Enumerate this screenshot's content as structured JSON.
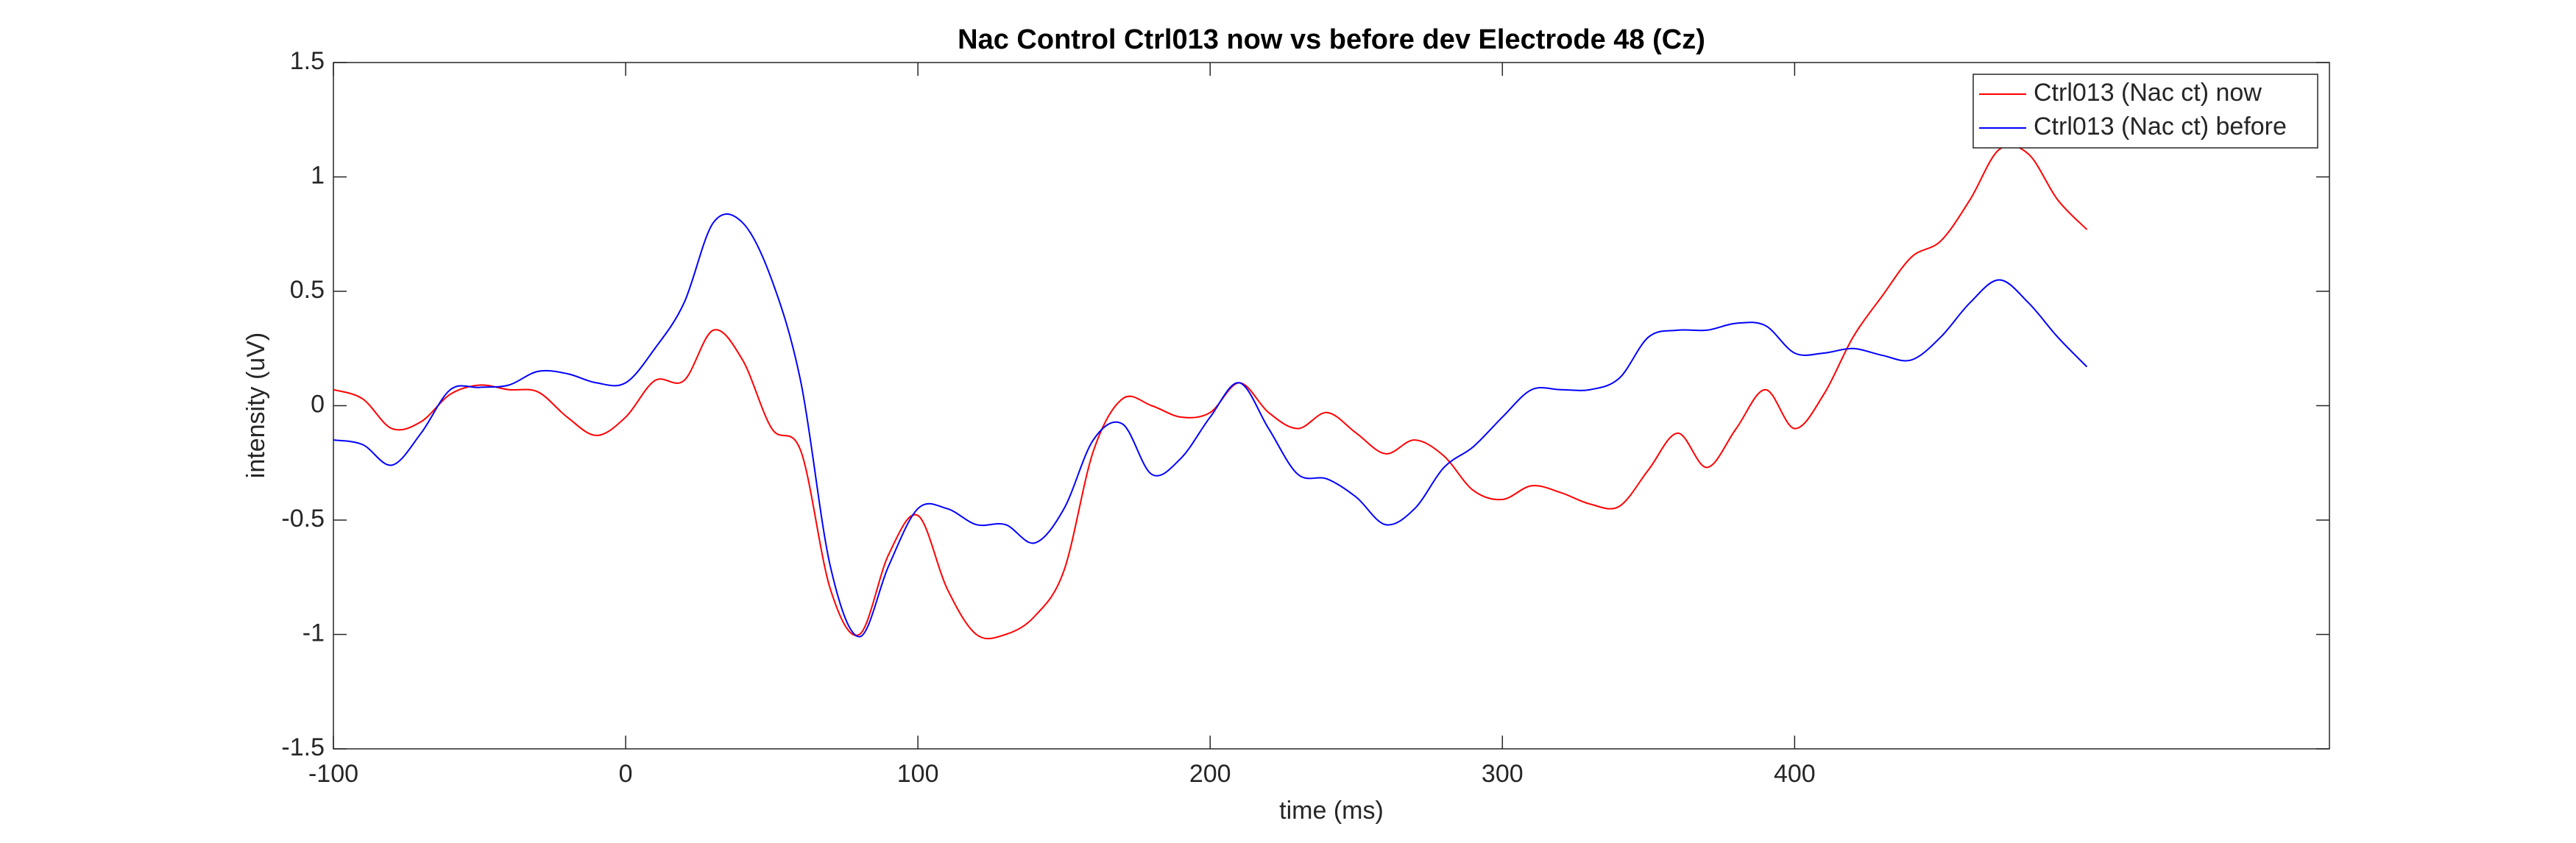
{
  "chart_data": {
    "type": "line",
    "title": "Nac Control Ctrl013 now vs before dev Electrode 48 (Cz)",
    "xlabel": "time (ms)",
    "ylabel": "intensity (uV)",
    "x": [
      -100,
      -90,
      -80,
      -70,
      -60,
      -50,
      -40,
      -30,
      -20,
      -10,
      0,
      10,
      20,
      30,
      40,
      50,
      60,
      70,
      80,
      90,
      100,
      110,
      120,
      130,
      140,
      150,
      160,
      170,
      180,
      190,
      200,
      210,
      220,
      230,
      240,
      250,
      260,
      270,
      280,
      290,
      300,
      310,
      320,
      330,
      340,
      350,
      360,
      370,
      380,
      390,
      400,
      410,
      420,
      430,
      440,
      450,
      460,
      470,
      480,
      490,
      500
    ],
    "series": [
      {
        "name": "Ctrl013 (Nac ct) now",
        "color": "#ff0000",
        "values": [
          0.07,
          0.03,
          -0.1,
          -0.07,
          0.05,
          0.09,
          0.07,
          0.06,
          -0.05,
          -0.13,
          -0.05,
          0.11,
          0.11,
          0.33,
          0.2,
          -0.1,
          -0.2,
          -0.8,
          -1.0,
          -0.65,
          -0.48,
          -0.8,
          -1.0,
          -1.0,
          -0.92,
          -0.72,
          -0.2,
          0.03,
          0.0,
          -0.05,
          -0.03,
          0.1,
          -0.03,
          -0.1,
          -0.03,
          -0.12,
          -0.21,
          -0.15,
          -0.22,
          -0.37,
          -0.41,
          -0.35,
          -0.38,
          -0.43,
          -0.44,
          -0.28,
          -0.12,
          -0.27,
          -0.1,
          0.07,
          -0.1,
          0.05,
          0.3,
          0.48,
          0.65,
          0.72,
          0.9,
          1.12,
          1.1,
          0.9,
          0.77
        ]
      },
      {
        "name": "Ctrl013 (Nac ct) before",
        "color": "#0000ff",
        "values": [
          -0.15,
          -0.17,
          -0.26,
          -0.12,
          0.07,
          0.08,
          0.09,
          0.15,
          0.14,
          0.1,
          0.1,
          0.25,
          0.45,
          0.8,
          0.8,
          0.55,
          0.1,
          -0.7,
          -1.01,
          -0.7,
          -0.45,
          -0.45,
          -0.52,
          -0.52,
          -0.6,
          -0.45,
          -0.15,
          -0.08,
          -0.3,
          -0.23,
          -0.05,
          0.1,
          -0.1,
          -0.3,
          -0.32,
          -0.4,
          -0.52,
          -0.45,
          -0.27,
          -0.18,
          -0.05,
          0.07,
          0.07,
          0.07,
          0.12,
          0.3,
          0.33,
          0.33,
          0.36,
          0.35,
          0.23,
          0.23,
          0.25,
          0.22,
          0.2,
          0.3,
          0.45,
          0.55,
          0.45,
          0.3,
          0.17
        ]
      }
    ],
    "xlim": [
      -100,
      583
    ],
    "xticks": [
      -100,
      0,
      100,
      200,
      300,
      400
    ],
    "ylim": [
      -1.5,
      1.5
    ],
    "yticks": [
      -1.5,
      -1,
      -0.5,
      0,
      0.5,
      1,
      1.5
    ],
    "grid": false,
    "legend": "top-right"
  }
}
